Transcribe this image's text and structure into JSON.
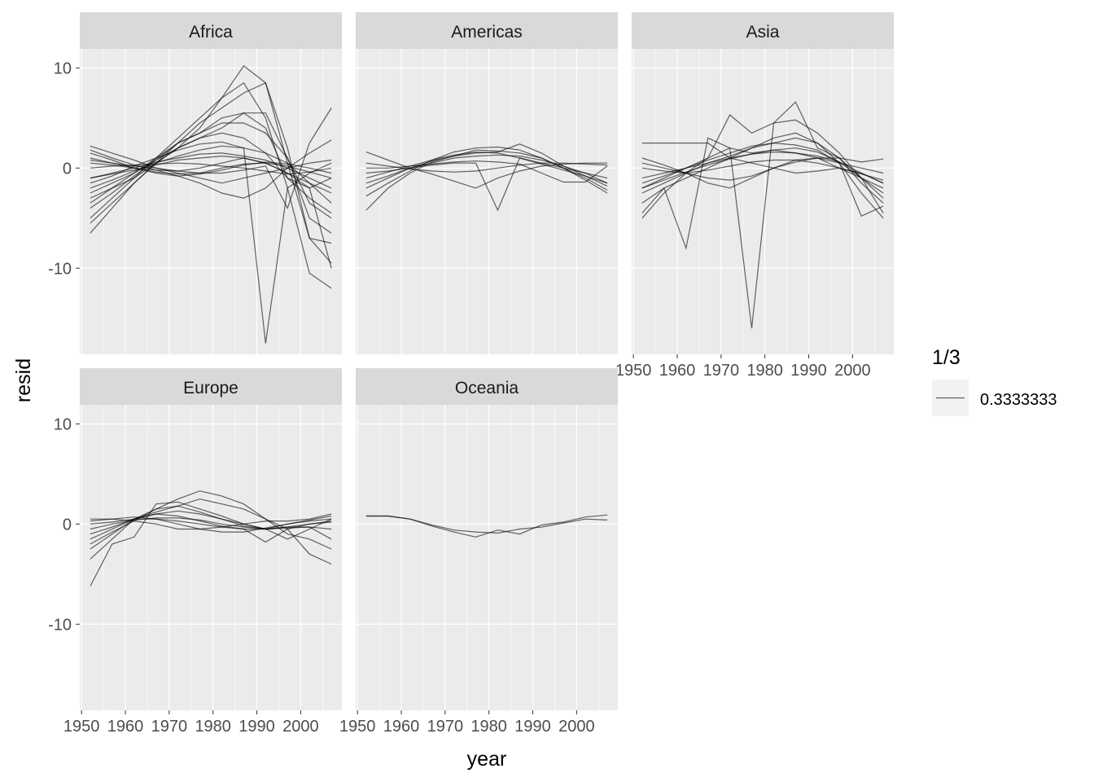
{
  "chart_data": {
    "type": "line",
    "title": "",
    "xlabel": "year",
    "ylabel": "resid",
    "xlim": [
      1949.6,
      2009.4
    ],
    "ylim": [
      -18.6,
      11.9
    ],
    "x_ticks": [
      1950,
      1960,
      1970,
      1980,
      1990,
      2000
    ],
    "y_ticks": [
      10,
      0,
      -10
    ],
    "grid": true,
    "line_color": "#000000",
    "line_alpha": 0.3333333,
    "legend": {
      "title": "1/3",
      "label": "0.3333333",
      "position": "right"
    },
    "x": [
      1952,
      1957,
      1962,
      1967,
      1972,
      1977,
      1982,
      1987,
      1992,
      1997,
      2002,
      2007
    ],
    "panels": [
      {
        "name": "Africa",
        "series": [
          [
            -1.5,
            -0.8,
            0.2,
            1.0,
            1.8,
            2.4,
            2.6,
            2.0,
            -17.5,
            -2.0,
            -0.5,
            0.5
          ],
          [
            -3.0,
            -2.0,
            -1.0,
            0.5,
            2.0,
            4.0,
            7.0,
            10.2,
            8.5,
            2.0,
            -7.0,
            -9.5
          ],
          [
            -5.0,
            -3.0,
            -1.0,
            1.0,
            3.0,
            5.0,
            7.0,
            8.5,
            5.0,
            -2.0,
            -10.5,
            -12.0
          ],
          [
            -6.5,
            -4.0,
            -1.5,
            0.5,
            2.5,
            4.5,
            6.0,
            7.5,
            8.5,
            0.5,
            -7.0,
            -7.5
          ],
          [
            -4.0,
            -2.5,
            -0.8,
            0.8,
            2.5,
            3.5,
            5.0,
            5.5,
            5.5,
            1.0,
            -5.0,
            -6.5
          ],
          [
            2.2,
            1.5,
            0.8,
            0.0,
            -0.5,
            -1.0,
            -1.5,
            -1.0,
            -0.5,
            0.0,
            0.5,
            0.8
          ],
          [
            1.8,
            1.0,
            0.3,
            -0.2,
            -0.8,
            -1.5,
            -2.5,
            -3.0,
            -2.0,
            0.0,
            1.5,
            2.8
          ],
          [
            0.8,
            0.5,
            0.2,
            0.0,
            -0.3,
            -0.5,
            -0.5,
            -0.2,
            0.2,
            -4.0,
            2.5,
            6.0
          ],
          [
            -2.0,
            -1.2,
            -0.3,
            0.5,
            1.2,
            1.8,
            2.2,
            2.0,
            1.5,
            0.5,
            -1.5,
            -3.5
          ],
          [
            -1.0,
            -0.5,
            0.0,
            0.6,
            1.0,
            1.4,
            1.5,
            1.2,
            0.8,
            0.0,
            -1.0,
            -2.0
          ],
          [
            1.0,
            0.5,
            0.0,
            -0.4,
            -0.6,
            -0.5,
            0.0,
            0.4,
            0.5,
            0.2,
            -0.4,
            -1.0
          ],
          [
            -2.5,
            -1.5,
            -0.5,
            0.8,
            2.0,
            3.0,
            4.0,
            5.5,
            4.0,
            -1.0,
            -3.0,
            -4.5
          ],
          [
            0.5,
            0.3,
            0.0,
            -0.2,
            -0.3,
            0.0,
            0.5,
            1.0,
            0.5,
            -0.5,
            -1.5,
            -2.5
          ],
          [
            -5.5,
            -3.5,
            -1.5,
            0.5,
            2.0,
            3.0,
            3.5,
            3.0,
            1.5,
            -1.0,
            -2.0,
            -1.0
          ],
          [
            1.5,
            0.8,
            0.0,
            -0.5,
            -0.8,
            -0.6,
            -0.2,
            0.3,
            0.6,
            0.4,
            0.0,
            -0.5
          ],
          [
            -3.5,
            -2.0,
            -0.5,
            1.0,
            2.5,
            3.5,
            4.5,
            4.5,
            3.5,
            1.0,
            -3.5,
            -5.0
          ],
          [
            0.0,
            0.2,
            0.3,
            0.4,
            0.5,
            0.4,
            0.2,
            0.0,
            -0.3,
            -0.6,
            -0.4,
            0.0
          ],
          [
            -1.0,
            -0.6,
            -0.2,
            0.3,
            0.8,
            1.0,
            1.2,
            1.0,
            0.5,
            -0.5,
            -2.0,
            -10.0
          ]
        ]
      },
      {
        "name": "Americas",
        "series": [
          [
            -4.2,
            -2.0,
            -0.5,
            0.6,
            1.2,
            1.8,
            1.7,
            1.5,
            1.0,
            0.0,
            -1.0,
            -2.2
          ],
          [
            1.6,
            0.8,
            0.0,
            -0.6,
            -1.3,
            -2.0,
            -1.0,
            -0.3,
            0.2,
            0.4,
            0.5,
            0.5
          ],
          [
            -0.5,
            -0.3,
            0.0,
            0.3,
            0.5,
            0.5,
            -4.2,
            1.0,
            0.5,
            0.0,
            -0.5,
            -1.0
          ],
          [
            -2.8,
            -1.5,
            -0.3,
            0.8,
            1.6,
            2.0,
            2.1,
            1.8,
            1.0,
            0.0,
            -1.2,
            -2.5
          ],
          [
            -2.0,
            -1.0,
            0.0,
            0.7,
            1.2,
            1.5,
            1.6,
            2.4,
            1.5,
            0.2,
            -0.8,
            -1.8
          ],
          [
            0.5,
            0.2,
            -0.1,
            -0.3,
            -0.4,
            -0.3,
            0.0,
            0.3,
            0.5,
            0.5,
            0.4,
            0.3
          ],
          [
            -1.5,
            -0.8,
            0.0,
            0.5,
            1.0,
            1.2,
            1.3,
            1.2,
            0.8,
            0.2,
            -0.5,
            -1.5
          ],
          [
            0.0,
            0.0,
            0.2,
            0.4,
            0.6,
            0.7,
            0.6,
            0.4,
            -0.5,
            -1.4,
            -1.4,
            0.2
          ],
          [
            -1.0,
            -0.4,
            0.2,
            0.8,
            1.3,
            1.6,
            1.5,
            1.0,
            0.4,
            -0.2,
            -0.8,
            -1.5
          ]
        ]
      },
      {
        "name": "Asia",
        "series": [
          [
            -1.5,
            -0.8,
            0.0,
            1.0,
            2.0,
            -16.0,
            4.5,
            4.8,
            3.5,
            1.5,
            -1.0,
            -2.5
          ],
          [
            -4.5,
            -2.0,
            -8.0,
            3.0,
            2.0,
            1.5,
            1.8,
            1.5,
            1.0,
            0.0,
            -1.0,
            -2.0
          ],
          [
            -5.0,
            -2.5,
            -0.5,
            1.0,
            5.3,
            3.5,
            4.5,
            6.6,
            2.0,
            1.0,
            -1.0,
            -4.5
          ],
          [
            2.5,
            2.5,
            2.5,
            2.5,
            1.0,
            0.5,
            0.0,
            -0.5,
            -0.3,
            0.0,
            -0.5,
            -1.5
          ],
          [
            -2.0,
            -1.0,
            0.0,
            0.8,
            1.5,
            2.2,
            2.5,
            2.3,
            1.8,
            0.5,
            -2.5,
            -5.0
          ],
          [
            -2.5,
            -1.5,
            -0.5,
            0.5,
            1.2,
            2.0,
            2.5,
            3.0,
            2.5,
            1.0,
            -1.5,
            -3.5
          ],
          [
            0.5,
            0.0,
            -0.5,
            -1.5,
            -2.0,
            -1.0,
            0.0,
            0.8,
            1.0,
            0.5,
            0.0,
            -0.5
          ],
          [
            -1.0,
            -0.5,
            0.0,
            0.5,
            1.0,
            1.4,
            1.6,
            1.5,
            1.2,
            0.6,
            -0.5,
            -1.5
          ],
          [
            1.0,
            0.3,
            -0.5,
            -1.0,
            -1.2,
            -0.8,
            0.0,
            0.6,
            1.0,
            1.0,
            0.6,
            0.9
          ],
          [
            -2.0,
            -1.2,
            -0.4,
            0.3,
            0.9,
            1.4,
            1.8,
            2.0,
            1.6,
            0.6,
            -1.0,
            -3.0
          ],
          [
            -3.5,
            -2.0,
            -1.0,
            0.0,
            1.0,
            2.0,
            3.0,
            3.5,
            2.5,
            0.5,
            -4.8,
            -3.8
          ],
          [
            0.0,
            -0.3,
            -0.5,
            -0.2,
            0.2,
            0.6,
            0.8,
            0.8,
            0.5,
            0.0,
            -0.6,
            -1.2
          ]
        ]
      },
      {
        "name": "Europe",
        "series": [
          [
            -6.2,
            -2.0,
            -1.3,
            2.0,
            2.2,
            1.5,
            0.8,
            0.0,
            -0.5,
            0.0,
            0.3,
            0.5
          ],
          [
            -3.5,
            -1.5,
            0.5,
            1.5,
            2.5,
            3.3,
            2.8,
            2.0,
            0.5,
            -0.5,
            -3.0,
            -4.0
          ],
          [
            -2.5,
            -1.0,
            0.5,
            1.2,
            1.8,
            2.5,
            2.0,
            1.5,
            0.5,
            -1.0,
            -1.5,
            -2.5
          ],
          [
            0.5,
            0.5,
            0.3,
            0.0,
            -0.5,
            -0.5,
            -0.3,
            0.0,
            0.3,
            0.3,
            0.5,
            1.0
          ],
          [
            -1.0,
            -0.3,
            0.5,
            1.0,
            1.3,
            1.0,
            0.5,
            0.0,
            -0.5,
            -1.5,
            -0.5,
            0.5
          ],
          [
            0.3,
            0.5,
            0.7,
            0.5,
            0.0,
            -0.5,
            -0.8,
            -0.8,
            -0.4,
            0.0,
            0.4,
            0.8
          ],
          [
            -1.5,
            -0.5,
            0.5,
            1.0,
            0.8,
            0.3,
            -0.2,
            -0.5,
            -1.8,
            -0.5,
            0.0,
            0.3
          ],
          [
            -0.5,
            0.0,
            0.4,
            0.6,
            0.6,
            0.4,
            0.0,
            -0.3,
            -0.5,
            -0.4,
            -0.3,
            -1.5
          ],
          [
            -2.0,
            -0.8,
            0.3,
            1.5,
            1.8,
            1.2,
            0.5,
            -0.2,
            -0.5,
            -0.3,
            0.0,
            0.2
          ],
          [
            0.0,
            0.2,
            0.5,
            0.5,
            0.3,
            0.0,
            -0.3,
            -0.5,
            -0.5,
            -0.3,
            -0.3,
            -0.5
          ]
        ]
      },
      {
        "name": "Oceania",
        "series": [
          [
            0.8,
            0.8,
            0.5,
            -0.2,
            -0.8,
            -1.3,
            -0.6,
            -1.0,
            -0.1,
            0.2,
            0.7,
            0.9
          ],
          [
            0.8,
            0.8,
            0.5,
            -0.1,
            -0.6,
            -0.8,
            -0.9,
            -0.5,
            -0.3,
            0.1,
            0.5,
            0.4
          ]
        ]
      }
    ]
  }
}
